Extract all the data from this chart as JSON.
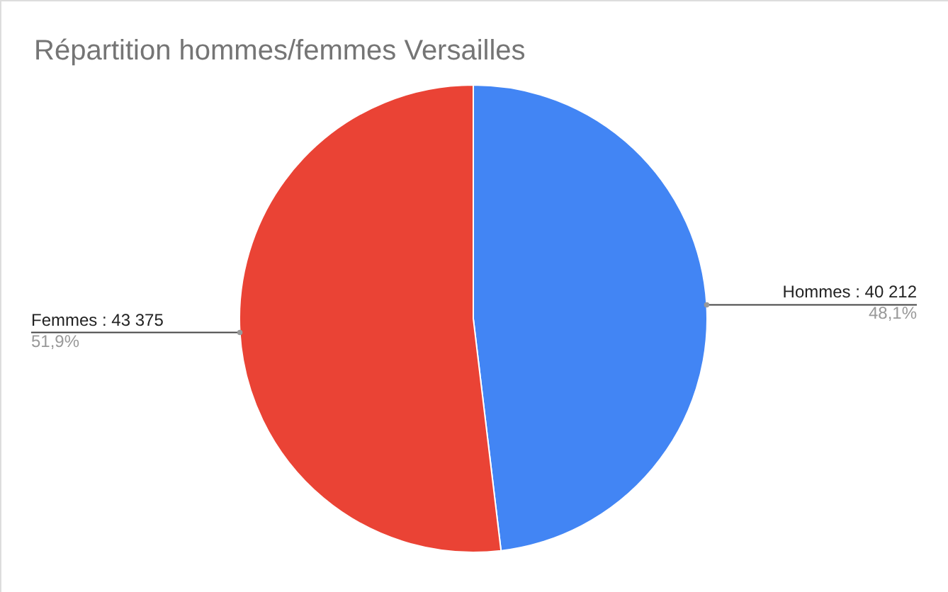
{
  "chart_data": {
    "type": "pie",
    "title": "Répartition hommes/femmes Versailles",
    "categories": [
      "Hommes",
      "Femmes"
    ],
    "values": [
      40212,
      43375
    ],
    "colors": [
      "#4285f4",
      "#ea4335"
    ],
    "value_labels": [
      "40 212",
      "43 375"
    ],
    "annotations": [
      {
        "text": "48,1%",
        "x": "Hommes"
      },
      {
        "text": "51,9%",
        "x": "Femmes"
      }
    ],
    "legend": false
  }
}
